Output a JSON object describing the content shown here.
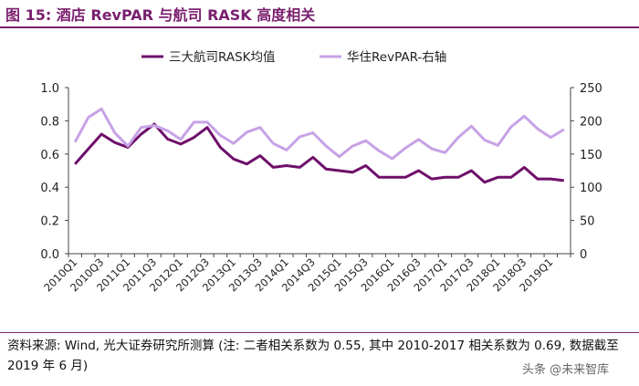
{
  "header": {
    "title": "图 15: 酒店 RevPAR 与航司 RASK 高度相关"
  },
  "footer": {
    "source": "资料来源: Wind, 光大证券研究所测算 (注: 二者相关系数为 0.55, 其中 2010-2017 相关系数为 0.69, 数据截至 2019 年 6 月)",
    "watermark": "头条 @未来智库"
  },
  "colors": {
    "rask": "#6e0f6a",
    "revpar": "#c7a2e6",
    "axis": "#444444",
    "title": "#7a1f6e"
  },
  "chart_data": {
    "type": "line",
    "title": "",
    "categories": [
      "2010Q1",
      "2010Q2",
      "2010Q3",
      "2010Q4",
      "2011Q1",
      "2011Q2",
      "2011Q3",
      "2011Q4",
      "2012Q1",
      "2012Q2",
      "2012Q3",
      "2012Q4",
      "2013Q1",
      "2013Q2",
      "2013Q3",
      "2013Q4",
      "2014Q1",
      "2014Q2",
      "2014Q3",
      "2014Q4",
      "2015Q1",
      "2015Q2",
      "2015Q3",
      "2015Q4",
      "2016Q1",
      "2016Q2",
      "2016Q3",
      "2016Q4",
      "2017Q1",
      "2017Q2",
      "2017Q3",
      "2017Q4",
      "2018Q1",
      "2018Q2",
      "2018Q3",
      "2018Q4",
      "2019Q1",
      "2019Q2"
    ],
    "tick_labels": [
      "2010Q1",
      "2010Q3",
      "2011Q1",
      "2011Q3",
      "2012Q1",
      "2012Q3",
      "2013Q1",
      "2013Q3",
      "2014Q1",
      "2014Q3",
      "2015Q1",
      "2015Q3",
      "2016Q1",
      "2016Q3",
      "2017Q1",
      "2017Q3",
      "2018Q1",
      "2018Q3",
      "2019Q1"
    ],
    "y_left": {
      "ylim": [
        0,
        1.0
      ],
      "ticks": [
        "0.0",
        "0.2",
        "0.4",
        "0.6",
        "0.8",
        "1.0"
      ]
    },
    "y_right": {
      "ylim": [
        0,
        250
      ],
      "ticks": [
        "0",
        "50",
        "100",
        "150",
        "200",
        "250"
      ]
    },
    "legend_position": "top",
    "series": [
      {
        "name": "三大航司RASK均值",
        "axis": "left",
        "values": [
          0.54,
          0.63,
          0.72,
          0.67,
          0.64,
          0.72,
          0.78,
          0.69,
          0.66,
          0.7,
          0.76,
          0.64,
          0.57,
          0.54,
          0.59,
          0.52,
          0.53,
          0.52,
          0.58,
          0.51,
          0.5,
          0.49,
          0.53,
          0.46,
          0.46,
          0.46,
          0.5,
          0.45,
          0.46,
          0.46,
          0.5,
          0.43,
          0.46,
          0.46,
          0.52,
          0.45,
          0.45,
          0.44
        ]
      },
      {
        "name": "华住RevPAR-右轴",
        "axis": "right",
        "values": [
          168,
          205,
          218,
          182,
          162,
          190,
          193,
          185,
          172,
          198,
          198,
          178,
          166,
          183,
          190,
          166,
          156,
          176,
          182,
          162,
          146,
          162,
          170,
          155,
          143,
          159,
          172,
          158,
          152,
          175,
          192,
          171,
          163,
          191,
          207,
          188,
          175,
          187
        ]
      }
    ]
  }
}
